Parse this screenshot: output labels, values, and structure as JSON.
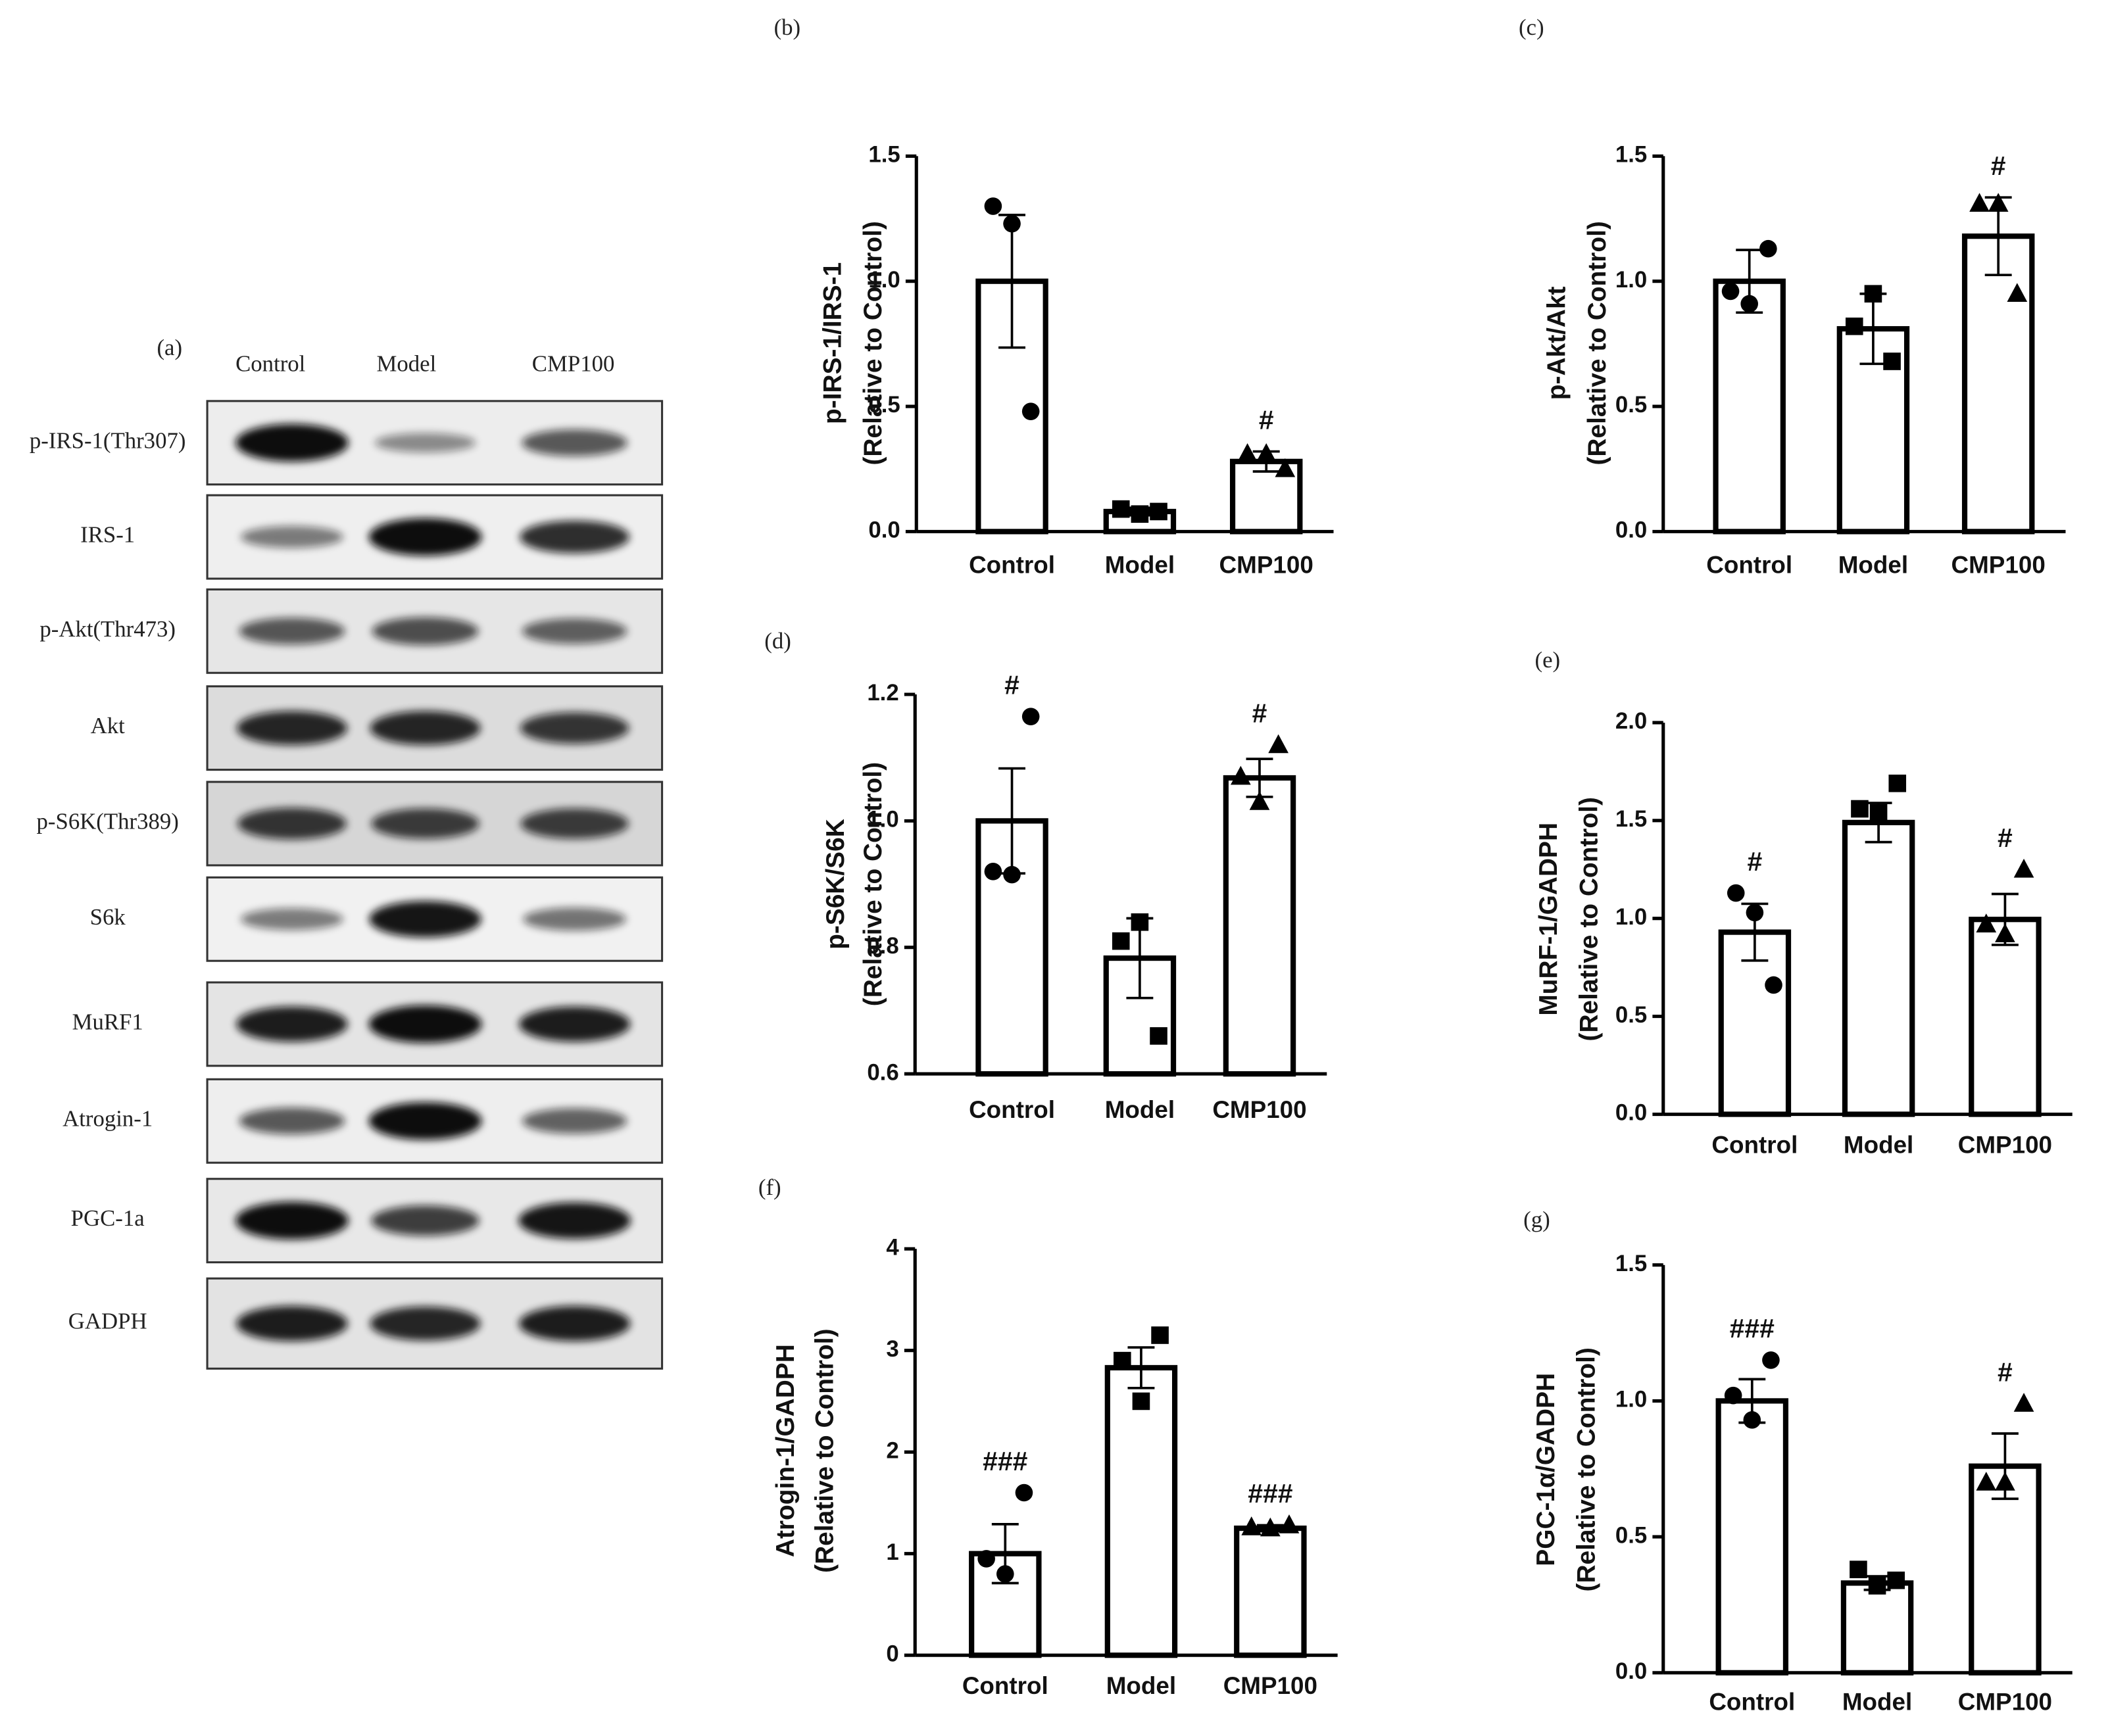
{
  "blot": {
    "panel_label": "(a)",
    "lanes": [
      "Control",
      "Model",
      "CMP100"
    ],
    "rows": [
      "p-IRS-1(Thr307)",
      "IRS-1",
      "p-Akt(Thr473)",
      "Akt",
      "p-S6K(Thr389)",
      "S6k",
      "MuRF1",
      "Atrogin-1",
      "PGC-1a",
      "GADPH"
    ]
  },
  "chart_data": [
    {
      "type": "bar",
      "panel_label": "(b)",
      "ylabel": [
        "p-IRS-1/IRS-1",
        "(Relative to Control)"
      ],
      "categories": [
        "Control",
        "Model",
        "CMP100"
      ],
      "values": [
        1.0,
        0.08,
        0.28
      ],
      "errors": [
        0.265,
        0.015,
        0.04
      ],
      "points": [
        [
          1.3,
          0.48,
          1.23
        ],
        [
          0.09,
          0.08,
          0.07
        ],
        [
          0.31,
          0.25,
          0.31
        ]
      ],
      "markers": [
        "circle",
        "square",
        "triangle"
      ],
      "annotations": [
        null,
        null,
        "#"
      ],
      "color": "#000000",
      "ylim": [
        0,
        1.5
      ],
      "yticks": [
        {
          "value": 0,
          "label": "0.0"
        },
        {
          "value": 0.5,
          "label": "0.5"
        },
        {
          "value": 1,
          "label": "1.0"
        },
        {
          "value": 1.5,
          "label": "1.5"
        }
      ]
    },
    {
      "type": "bar",
      "panel_label": "(c)",
      "ylabel": [
        "p-Akt/Akt",
        "(Relative to Control)"
      ],
      "categories": [
        "Control",
        "Model",
        "CMP100"
      ],
      "values": [
        1.0,
        0.81,
        1.18
      ],
      "errors": [
        0.125,
        0.14,
        0.155
      ],
      "points": [
        [
          0.96,
          1.13,
          0.91
        ],
        [
          0.82,
          0.68,
          0.95
        ],
        [
          1.31,
          0.95,
          1.31
        ]
      ],
      "markers": [
        "circle",
        "square",
        "triangle"
      ],
      "annotations": [
        null,
        null,
        "#"
      ],
      "color": "#000000",
      "ylim": [
        0,
        1.5
      ],
      "yticks": [
        {
          "value": 0,
          "label": "0.0"
        },
        {
          "value": 0.5,
          "label": "0.5"
        },
        {
          "value": 1,
          "label": "1.0"
        },
        {
          "value": 1.5,
          "label": "1.5"
        }
      ]
    },
    {
      "type": "bar",
      "panel_label": "(d)",
      "ylabel": [
        "p-S6K/S6K",
        "(Relative to Control)"
      ],
      "categories": [
        "Control",
        "Model",
        "CMP100"
      ],
      "values": [
        1.0,
        0.783,
        1.068
      ],
      "errors": [
        0.083,
        0.063,
        0.03
      ],
      "points": [
        [
          0.92,
          1.165,
          0.915
        ],
        [
          0.81,
          0.66,
          0.84
        ],
        [
          1.07,
          1.12,
          1.03
        ]
      ],
      "markers": [
        "circle",
        "square",
        "triangle"
      ],
      "annotations": [
        "#",
        null,
        "#"
      ],
      "color": "#000000",
      "ylim": [
        0.6,
        1.2
      ],
      "yticks": [
        {
          "value": 0.6,
          "label": "0.6"
        },
        {
          "value": 0.8,
          "label": "0.8"
        },
        {
          "value": 1,
          "label": "1.0"
        },
        {
          "value": 1.2,
          "label": "1.2"
        }
      ]
    },
    {
      "type": "bar",
      "panel_label": "(e)",
      "ylabel": [
        "MuRF-1/GADPH",
        "(Relative to Control)"
      ],
      "categories": [
        "Control",
        "Model",
        "CMP100"
      ],
      "values": [
        0.93,
        1.49,
        0.995
      ],
      "errors": [
        0.145,
        0.1,
        0.13
      ],
      "points": [
        [
          1.13,
          0.66,
          1.03
        ],
        [
          1.56,
          1.69,
          1.54
        ],
        [
          0.97,
          1.25,
          0.92
        ]
      ],
      "markers": [
        "circle",
        "square",
        "triangle"
      ],
      "annotations": [
        "#",
        null,
        "#"
      ],
      "color": "#000000",
      "ylim": [
        0,
        2
      ],
      "yticks": [
        {
          "value": 0,
          "label": "0.0"
        },
        {
          "value": 0.5,
          "label": "0.5"
        },
        {
          "value": 1,
          "label": "1.0"
        },
        {
          "value": 1.5,
          "label": "1.5"
        },
        {
          "value": 2,
          "label": "2.0"
        }
      ]
    },
    {
      "type": "bar",
      "panel_label": "(f)",
      "ylabel": [
        "Atrogin-1/GADPH",
        "(Relative to Control)"
      ],
      "categories": [
        "Control",
        "Model",
        "CMP100"
      ],
      "values": [
        1.0,
        2.83,
        1.25
      ],
      "errors": [
        0.29,
        0.2,
        0.03
      ],
      "points": [
        [
          0.95,
          1.6,
          0.8
        ],
        [
          2.9,
          3.15,
          2.5
        ],
        [
          1.26,
          1.28,
          1.25
        ]
      ],
      "markers": [
        "circle",
        "square",
        "triangle"
      ],
      "annotations": [
        "###",
        null,
        "###"
      ],
      "color": "#000000",
      "ylim": [
        0,
        4
      ],
      "yticks": [
        0,
        1,
        2,
        3,
        4
      ]
    },
    {
      "type": "bar",
      "panel_label": "(g)",
      "ylabel": [
        "PGC-1α/GADPH",
        "(Relative to Control)"
      ],
      "categories": [
        "Control",
        "Model",
        "CMP100"
      ],
      "values": [
        1.0,
        0.33,
        0.76
      ],
      "errors": [
        0.08,
        0.025,
        0.12
      ],
      "points": [
        [
          1.02,
          1.15,
          0.93
        ],
        [
          0.38,
          0.34,
          0.32
        ],
        [
          0.7,
          0.99,
          0.7
        ]
      ],
      "markers": [
        "circle",
        "square",
        "triangle"
      ],
      "annotations": [
        "###",
        null,
        "#"
      ],
      "color": "#000000",
      "ylim": [
        0,
        1.5
      ],
      "yticks": [
        {
          "value": 0,
          "label": "0.0"
        },
        {
          "value": 0.5,
          "label": "0.5"
        },
        {
          "value": 1,
          "label": "1.0"
        },
        {
          "value": 1.5,
          "label": "1.5"
        }
      ]
    }
  ]
}
